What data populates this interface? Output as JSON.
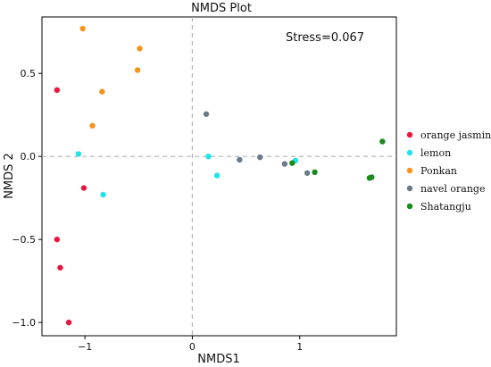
{
  "chart_data": {
    "type": "scatter",
    "title": "NMDS Plot",
    "xlabel": "NMDS1",
    "ylabel": "NMDS 2",
    "xlim": [
      -1.4,
      1.9
    ],
    "ylim": [
      -1.08,
      0.84
    ],
    "xticks": [
      -1,
      0,
      1
    ],
    "yticks": [
      -1.0,
      -0.5,
      0.0,
      0.5
    ],
    "tick_labels_x": [
      "−1",
      "0",
      "1"
    ],
    "tick_labels_y": [
      "−1.0",
      "−0.5",
      "0.0",
      "0.5"
    ],
    "reference_lines": {
      "x": 0,
      "y": 0,
      "style": "dashed"
    },
    "annotation": "Stress=0.067",
    "legend_position": "right",
    "series": [
      {
        "name": "orange jasmine",
        "color": "#e8173f",
        "points": [
          [
            -1.26,
            0.4
          ],
          [
            -1.01,
            -0.19
          ],
          [
            -1.26,
            -0.5
          ],
          [
            -1.23,
            -0.67
          ],
          [
            -1.15,
            -1.0
          ]
        ]
      },
      {
        "name": "lemon",
        "color": "#22e3ec",
        "points": [
          [
            -1.06,
            0.015
          ],
          [
            -0.83,
            -0.23
          ],
          [
            0.15,
            0.0
          ],
          [
            0.23,
            -0.115
          ],
          [
            0.96,
            -0.025
          ]
        ]
      },
      {
        "name": "Ponkan",
        "color": "#f5941d",
        "points": [
          [
            -1.02,
            0.77
          ],
          [
            -0.49,
            0.65
          ],
          [
            -0.51,
            0.52
          ],
          [
            -0.84,
            0.39
          ],
          [
            -0.93,
            0.185
          ]
        ]
      },
      {
        "name": "navel orange",
        "color": "#6b7a8a",
        "points": [
          [
            0.13,
            0.255
          ],
          [
            0.44,
            -0.02
          ],
          [
            0.63,
            -0.005
          ],
          [
            0.86,
            -0.045
          ],
          [
            1.07,
            -0.1
          ]
        ]
      },
      {
        "name": "Shatangju",
        "color": "#1a8a1a",
        "points": [
          [
            1.77,
            0.09
          ],
          [
            0.93,
            -0.04
          ],
          [
            1.14,
            -0.095
          ],
          [
            1.65,
            -0.13
          ],
          [
            1.67,
            -0.125
          ]
        ]
      }
    ]
  }
}
